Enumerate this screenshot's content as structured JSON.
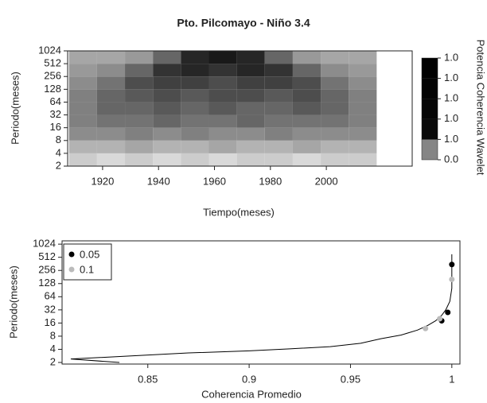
{
  "chart_data": [
    {
      "type": "heatmap",
      "title": "Pto. Pilcomayo - Niño 3.4",
      "xlabel": "Tiempo(meses)",
      "ylabel": "Periodo(meses)",
      "colorbar_label": "Potencia Coherencia Wavelet",
      "x_edges": [
        1908,
        1918,
        1928,
        1938,
        1948,
        1958,
        1968,
        1978,
        1988,
        1998,
        2008,
        2018
      ],
      "y_edges": [
        2,
        4,
        8,
        16,
        32,
        64,
        128,
        256,
        512,
        1024
      ],
      "values": [
        [
          0.2,
          0.15,
          0.2,
          0.15,
          0.2,
          0.15,
          0.2,
          0.2,
          0.15,
          0.2,
          0.2
        ],
        [
          0.3,
          0.3,
          0.35,
          0.3,
          0.3,
          0.35,
          0.3,
          0.3,
          0.35,
          0.3,
          0.3
        ],
        [
          0.45,
          0.45,
          0.5,
          0.45,
          0.5,
          0.45,
          0.45,
          0.5,
          0.45,
          0.45,
          0.45
        ],
        [
          0.5,
          0.55,
          0.55,
          0.6,
          0.55,
          0.55,
          0.6,
          0.55,
          0.55,
          0.55,
          0.5
        ],
        [
          0.5,
          0.6,
          0.6,
          0.65,
          0.6,
          0.65,
          0.6,
          0.6,
          0.65,
          0.6,
          0.5
        ],
        [
          0.5,
          0.6,
          0.65,
          0.7,
          0.65,
          0.7,
          0.7,
          0.65,
          0.7,
          0.6,
          0.5
        ],
        [
          0.45,
          0.55,
          0.7,
          0.75,
          0.75,
          0.7,
          0.75,
          0.75,
          0.7,
          0.55,
          0.45
        ],
        [
          0.4,
          0.45,
          0.6,
          0.8,
          0.85,
          0.8,
          0.85,
          0.8,
          0.6,
          0.45,
          0.4
        ],
        [
          0.35,
          0.35,
          0.4,
          0.6,
          0.85,
          0.9,
          0.85,
          0.6,
          0.4,
          0.35,
          0.35
        ]
      ],
      "xlim": [
        1907.5,
        2030.7
      ],
      "ylim": [
        2,
        1024
      ],
      "log_y": 2,
      "xticks": [
        1920,
        1940,
        1960,
        1980,
        2000
      ],
      "yticks": [
        2,
        4,
        8,
        16,
        32,
        64,
        128,
        256,
        512,
        1024
      ],
      "colorbar": [
        {
          "value": 1.0,
          "label": "1.0"
        },
        {
          "value": 0.99,
          "label": "1.0"
        },
        {
          "value": 0.98,
          "label": "1.0"
        },
        {
          "value": 0.97,
          "label": "1.0"
        },
        {
          "value": 0.96,
          "label": "1.0"
        },
        {
          "value": 0.0,
          "label": "0.0"
        }
      ]
    },
    {
      "type": "line",
      "xlabel": "Coherencia Promedio",
      "ylabel": "Periodo(meses)",
      "line": {
        "color": "#000000",
        "x": [
          0.836,
          0.812,
          0.84,
          0.87,
          0.9,
          0.92,
          0.94,
          0.955,
          0.965,
          0.975,
          0.983,
          0.988,
          0.992,
          0.995,
          0.997,
          0.999,
          1.0,
          1.0,
          1.0
        ],
        "y": [
          2,
          2.4,
          2.8,
          3.3,
          3.7,
          4.1,
          4.6,
          5.5,
          7,
          8.5,
          11,
          14,
          18,
          24,
          32,
          50,
          100,
          250,
          600
        ]
      },
      "series": [
        {
          "name": "0.05",
          "color": "#000000",
          "x": [
            0.995,
            0.998,
            1.0
          ],
          "y": [
            18,
            28,
            350
          ]
        },
        {
          "name": "0.1",
          "color": "#bbbbbb",
          "x": [
            0.987,
            0.994,
            1.0
          ],
          "y": [
            12,
            20,
            160
          ]
        }
      ],
      "xlim": [
        0.8077,
        1.004
      ],
      "ylim": [
        1.84,
        1218
      ],
      "log_y": 2,
      "xticks": [
        0.85,
        0.9,
        0.95,
        1
      ],
      "yticks": [
        2,
        4,
        8,
        16,
        32,
        64,
        128,
        256,
        512,
        1024
      ],
      "legend": "top-left"
    }
  ]
}
